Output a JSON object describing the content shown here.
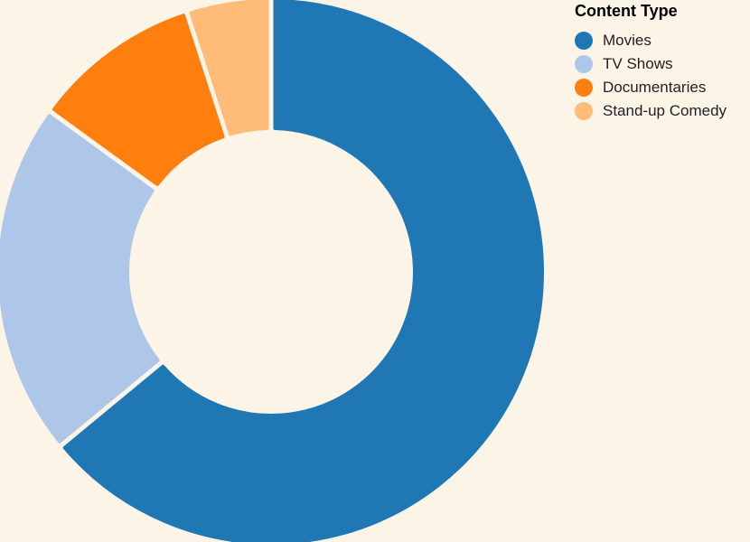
{
  "chart_data": {
    "type": "pie",
    "hole": 0.53,
    "legend_title": "Content Type",
    "legend_position": "top-right",
    "categories": [
      "Movies",
      "TV Shows",
      "Documentaries",
      "Stand-up Comedy"
    ],
    "values": [
      64,
      21,
      10,
      5
    ],
    "colors": [
      "#1f77b4",
      "#aec7e8",
      "#ff7f0e",
      "#ffbb78"
    ],
    "background": "#fdf4e8"
  }
}
